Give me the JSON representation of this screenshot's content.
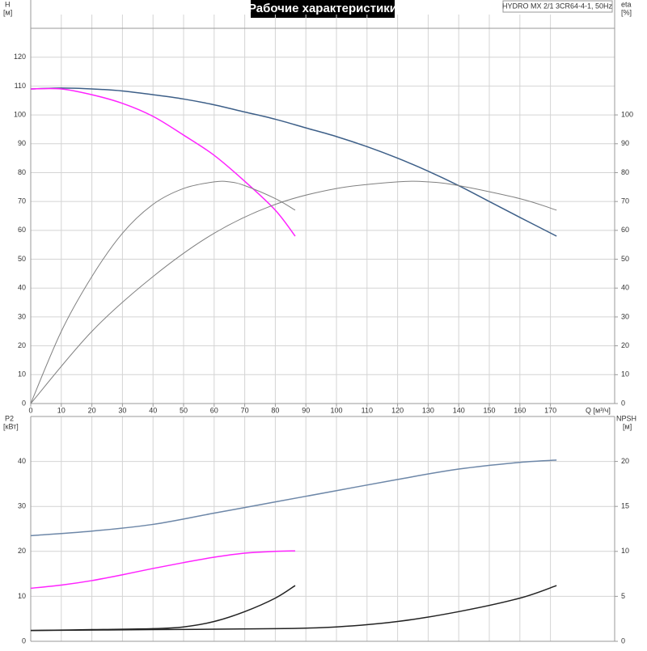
{
  "chart_data": [
    {
      "type": "line",
      "title": "Рабочие характеристики",
      "annotation": "HYDRO MX 2/1 3CR64-4-1, 50Hz",
      "ylabel": "H",
      "yunit": "[м]",
      "y2label": "eta",
      "y2unit": "[%]",
      "xlabel": "Q [м³/ч]",
      "xlim": [
        0,
        191
      ],
      "xticks": [
        0,
        10,
        20,
        30,
        40,
        50,
        60,
        70,
        80,
        90,
        100,
        110,
        120,
        130,
        140,
        150,
        160,
        170
      ],
      "ylim": [
        0,
        130
      ],
      "yticks": [
        0,
        10,
        20,
        30,
        40,
        50,
        60,
        70,
        80,
        90,
        100,
        110,
        120
      ],
      "y2lim": [
        0,
        130
      ],
      "y2ticks": [
        0,
        10,
        20,
        30,
        40,
        50,
        60,
        70,
        80,
        90,
        100
      ],
      "series": [
        {
          "color": "#3d5f88",
          "x": [
            0,
            10,
            20,
            30,
            40,
            50,
            60,
            70,
            80,
            90,
            100,
            110,
            120,
            130,
            140,
            150,
            160,
            172
          ],
          "values": [
            109,
            109.3,
            109,
            108.3,
            107,
            105.5,
            103.5,
            101,
            98.5,
            95.5,
            92.5,
            89,
            85,
            80.5,
            75.5,
            70,
            64.5,
            58
          ]
        },
        {
          "color": "#ff22ff",
          "x": [
            0,
            10,
            20,
            30,
            40,
            50,
            60,
            70,
            80,
            86.5
          ],
          "values": [
            109,
            109,
            107,
            104,
            99.5,
            93,
            86,
            77,
            67,
            58
          ]
        },
        {
          "color": "#808080",
          "axis": "y2",
          "x": [
            0,
            10,
            20,
            30,
            40,
            50,
            60,
            65,
            70,
            80,
            86.5
          ],
          "values": [
            0,
            25,
            44,
            59,
            69,
            74.5,
            76.8,
            76.8,
            75.5,
            71,
            67
          ]
        },
        {
          "color": "#808080",
          "axis": "y2",
          "x": [
            0,
            20,
            40,
            60,
            80,
            100,
            120,
            130,
            140,
            160,
            172
          ],
          "values": [
            0,
            25,
            44,
            59,
            69,
            74.5,
            76.8,
            76.8,
            75.5,
            71,
            67
          ]
        }
      ]
    },
    {
      "type": "line",
      "ylabel": "P2",
      "yunit": "[кВт]",
      "y2label": "NPSH",
      "y2unit": "[м]",
      "xlim": [
        0,
        191
      ],
      "ylim": [
        0,
        50
      ],
      "yticks": [
        0,
        10,
        20,
        30,
        40
      ],
      "y2lim": [
        0,
        25
      ],
      "y2ticks": [
        0,
        5,
        10,
        15,
        20
      ],
      "series": [
        {
          "color": "#6d87a8",
          "x": [
            0,
            20,
            40,
            60,
            80,
            100,
            120,
            140,
            160,
            172
          ],
          "values": [
            23.5,
            24.5,
            26,
            28.5,
            31,
            33.5,
            36,
            38.3,
            39.8,
            40.3
          ]
        },
        {
          "color": "#ff22ff",
          "x": [
            0,
            10,
            20,
            30,
            40,
            50,
            60,
            70,
            80,
            86.5
          ],
          "values": [
            11.8,
            12.5,
            13.5,
            14.8,
            16.2,
            17.5,
            18.7,
            19.6,
            20,
            20.1
          ]
        },
        {
          "color": "#222222",
          "axis": "y2",
          "x": [
            0,
            20,
            40,
            50,
            60,
            70,
            80,
            86.5
          ],
          "values": [
            1.2,
            1.3,
            1.4,
            1.6,
            2.2,
            3.3,
            4.8,
            6.2
          ]
        },
        {
          "color": "#222222",
          "axis": "y2",
          "x": [
            0,
            40,
            80,
            100,
            120,
            140,
            160,
            172
          ],
          "values": [
            1.2,
            1.3,
            1.4,
            1.6,
            2.2,
            3.3,
            4.8,
            6.2
          ]
        }
      ]
    }
  ]
}
